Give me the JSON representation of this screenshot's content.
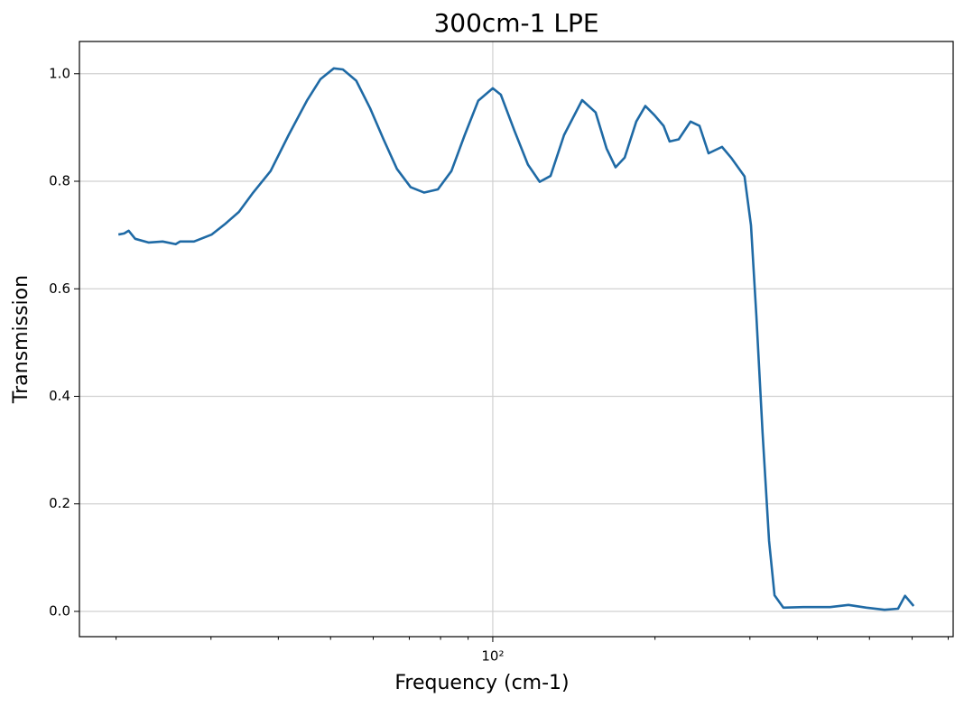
{
  "chart_data": {
    "type": "line",
    "title": "300cm-1 LPE",
    "xlabel": "Frequency (cm-1)",
    "ylabel": "Transmission",
    "xscale": "log",
    "grid": true,
    "xlim": [
      17.1,
      715
    ],
    "ylim": [
      -0.047,
      1.06
    ],
    "xticks": [
      {
        "value": 100,
        "label": "10²"
      }
    ],
    "xminorticks": [
      20,
      30,
      40,
      50,
      60,
      70,
      80,
      90,
      200,
      300,
      400,
      500,
      600,
      700
    ],
    "yticks": [
      {
        "value": 0,
        "label": "0.0"
      },
      0.2,
      0.4,
      0.6,
      0.8,
      {
        "value": 1,
        "label": "1.0"
      }
    ],
    "x": [
      20.2,
      20.7,
      21.1,
      21.7,
      23.0,
      24.4,
      25.8,
      26.3,
      27.9,
      30.1,
      31.9,
      33.8,
      35.8,
      38.7,
      41.8,
      45.2,
      47.9,
      50.7,
      52.7,
      55.8,
      59.2,
      62.7,
      66.4,
      70.4,
      74.6,
      79.1,
      83.8,
      88.7,
      94.0,
      100,
      103.5,
      109.7,
      116.2,
      122.2,
      128.0,
      135.6,
      146.5,
      155.2,
      162.6,
      169.0,
      175.7,
      184.6,
      191.9,
      199.5,
      207.5,
      212.9,
      221.3,
      232.8,
      241.9,
      251.4,
      266.3,
      276.8,
      293.2,
      301.4,
      308.4,
      316.7,
      325.6,
      333.3,
      346.0,
      376.7,
      422.7,
      457.1,
      493.2,
      533.3,
      564.9,
      582.1,
      603.9
    ],
    "series": [
      {
        "name": "300cm-1 LPE",
        "color": "#1f6aa5",
        "values": [
          0.701,
          0.703,
          0.708,
          0.693,
          0.686,
          0.688,
          0.683,
          0.688,
          0.688,
          0.701,
          0.721,
          0.743,
          0.777,
          0.819,
          0.886,
          0.95,
          0.99,
          1.01,
          1.008,
          0.987,
          0.936,
          0.878,
          0.823,
          0.789,
          0.779,
          0.785,
          0.819,
          0.886,
          0.95,
          0.973,
          0.961,
          0.894,
          0.831,
          0.799,
          0.81,
          0.886,
          0.951,
          0.928,
          0.861,
          0.826,
          0.844,
          0.911,
          0.94,
          0.923,
          0.903,
          0.874,
          0.878,
          0.911,
          0.903,
          0.852,
          0.864,
          0.844,
          0.809,
          0.718,
          0.55,
          0.332,
          0.131,
          0.03,
          0.007,
          0.008,
          0.008,
          0.012,
          0.007,
          0.003,
          0.005,
          0.029,
          0.01
        ]
      }
    ]
  }
}
